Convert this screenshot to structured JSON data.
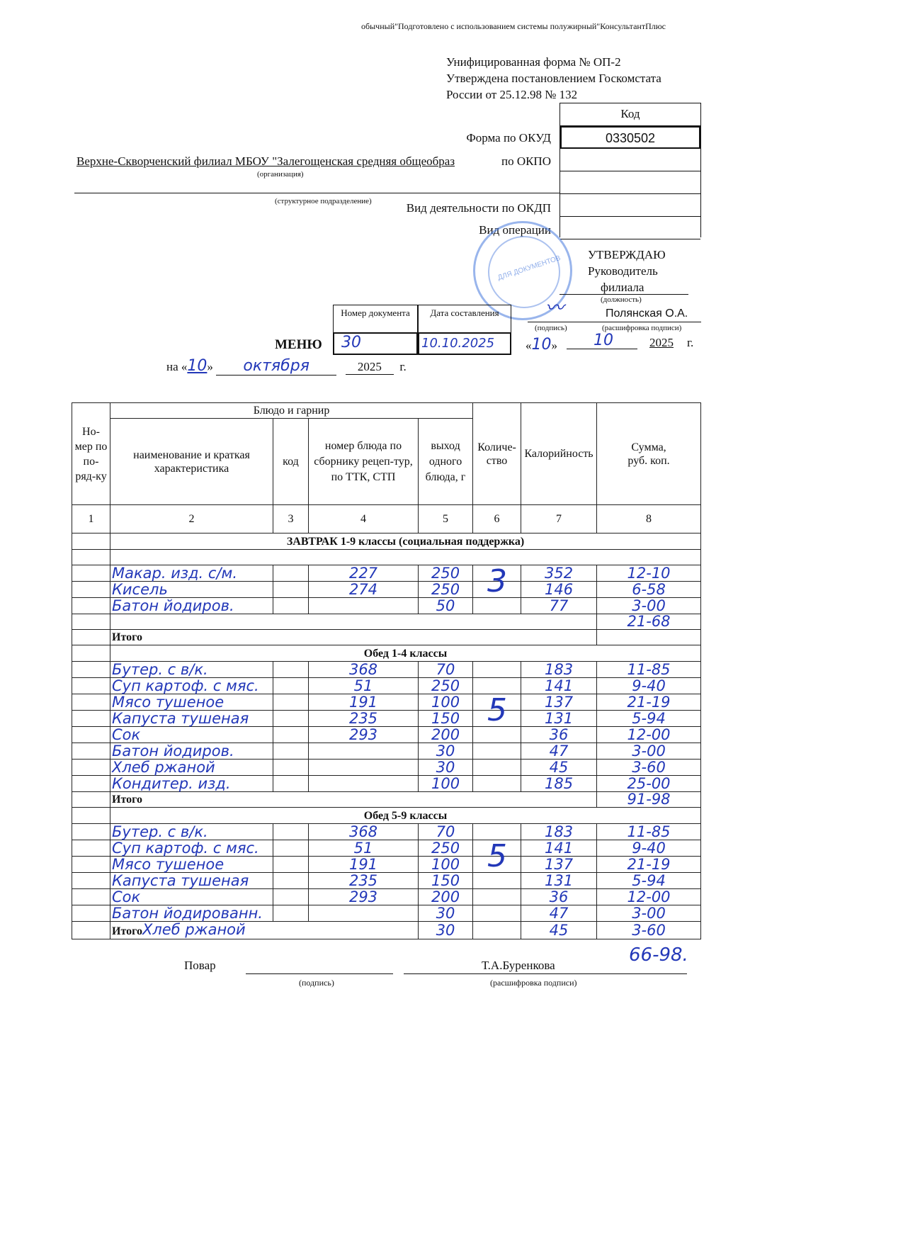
{
  "header_note": "обычный\"Подготовлено с использованием системы полужирный\"КонсультантПлюс",
  "form_info": [
    "Унифицированная форма № ОП-2",
    "Утверждена постановлением Госкомстата",
    "России от 25.12.98 № 132"
  ],
  "codes": {
    "header": "Код",
    "okud_label": "Форма по ОКУД",
    "okud": "0330502",
    "okpo_label": "по ОКПО",
    "okdp_label": "Вид деятельности по ОКДП",
    "operation_label": "Вид операции"
  },
  "organization": "Верхне-Скворченский филиал МБОУ \"Залегощенская средняя общеобраз",
  "org_caption": "(организация)",
  "subdivision_caption": "(структурное подразделение)",
  "stamp_text": "ДЛЯ ДОКУМЕНТОВ",
  "approval": {
    "title": "УТВЕРЖДАЮ",
    "role1": "Руководитель",
    "role2": "филиала",
    "role_caption": "(должность)",
    "name": "Полянская О.А.",
    "sign_caption": "(подпись)",
    "name_caption": "(расшифровка подписи)",
    "day": "10",
    "month": "10",
    "year": "2025",
    "g": "г."
  },
  "doc": {
    "title": "МЕНЮ",
    "num_header": "Номер документа",
    "date_header": "Дата составления",
    "number": "30",
    "date": "10.10.2025",
    "on": "на «",
    "day": "10",
    "close": "»",
    "month": "октября",
    "year": "2025",
    "g": "г."
  },
  "table": {
    "group_header": "Блюдо и гарнир",
    "headers": [
      "Но-мер по по-ряд-ку",
      "наименование и краткая характеристика",
      "код",
      "номер блюда по сборнику рецеп-тур, по ТТК, СТП",
      "выход одного блюда, г",
      "Количе-ство",
      "Калорийность",
      "Сумма, руб. коп."
    ],
    "col_numbers": [
      "1",
      "2",
      "3",
      "4",
      "5",
      "6",
      "7",
      "8"
    ],
    "sections": [
      {
        "title": "ЗАВТРАК 1-9 классы (социальная поддержка)",
        "quantity": "3",
        "rows": [
          [
            "Макар. изд. с/м.",
            "227",
            "250",
            "352",
            "12-10"
          ],
          [
            "Кисель",
            "274",
            "250",
            "146",
            "6-58"
          ],
          [
            "Батон йодиров.",
            "",
            "50",
            "77",
            "3-00"
          ]
        ],
        "subtotal": "21-68",
        "total_label": "Итого",
        "total": ""
      },
      {
        "title": "Обед 1-4 классы",
        "quantity": "5",
        "rows": [
          [
            "Бутер. с в/к.",
            "368",
            "70",
            "183",
            "11-85"
          ],
          [
            "Суп картоф. с мяс.",
            "51",
            "250",
            "141",
            "9-40"
          ],
          [
            "Мясо тушеное",
            "191",
            "100",
            "137",
            "21-19"
          ],
          [
            "Капуста тушеная",
            "235",
            "150",
            "131",
            "5-94"
          ],
          [
            "Сок",
            "293",
            "200",
            "36",
            "12-00"
          ],
          [
            "Батон йодиров.",
            "",
            "30",
            "47",
            "3-00"
          ],
          [
            "Хлеб ржаной",
            "",
            "30",
            "45",
            "3-60"
          ],
          [
            "Кондитер. изд.",
            "",
            "100",
            "185",
            "25-00"
          ]
        ],
        "total_label": "Итого",
        "total": "91-98"
      },
      {
        "title": "Обед 5-9 классы",
        "quantity": "5",
        "rows": [
          [
            "Бутер. с в/к.",
            "368",
            "70",
            "183",
            "11-85"
          ],
          [
            "Суп картоф. с мяс.",
            "51",
            "250",
            "141",
            "9-40"
          ],
          [
            "Мясо тушеное",
            "191",
            "100",
            "137",
            "21-19"
          ],
          [
            "Капуста тушеная",
            "235",
            "150",
            "131",
            "5-94"
          ],
          [
            "Сок",
            "293",
            "200",
            "36",
            "12-00"
          ],
          [
            "Батон йодированн.",
            "",
            "30",
            "47",
            "3-00"
          ]
        ],
        "total_label": "Итого",
        "total_row": [
          "Хлеб ржаной",
          "",
          "30",
          "45",
          "3-60"
        ],
        "total": "66-98."
      }
    ]
  },
  "footer": {
    "role": "Повар",
    "name": "Т.А.Буренкова",
    "sign_caption": "(подпись)",
    "name_caption": "(расшифровка подписи)"
  },
  "colors": {
    "ink": "#2338b8",
    "stamp": "#4678dc"
  }
}
